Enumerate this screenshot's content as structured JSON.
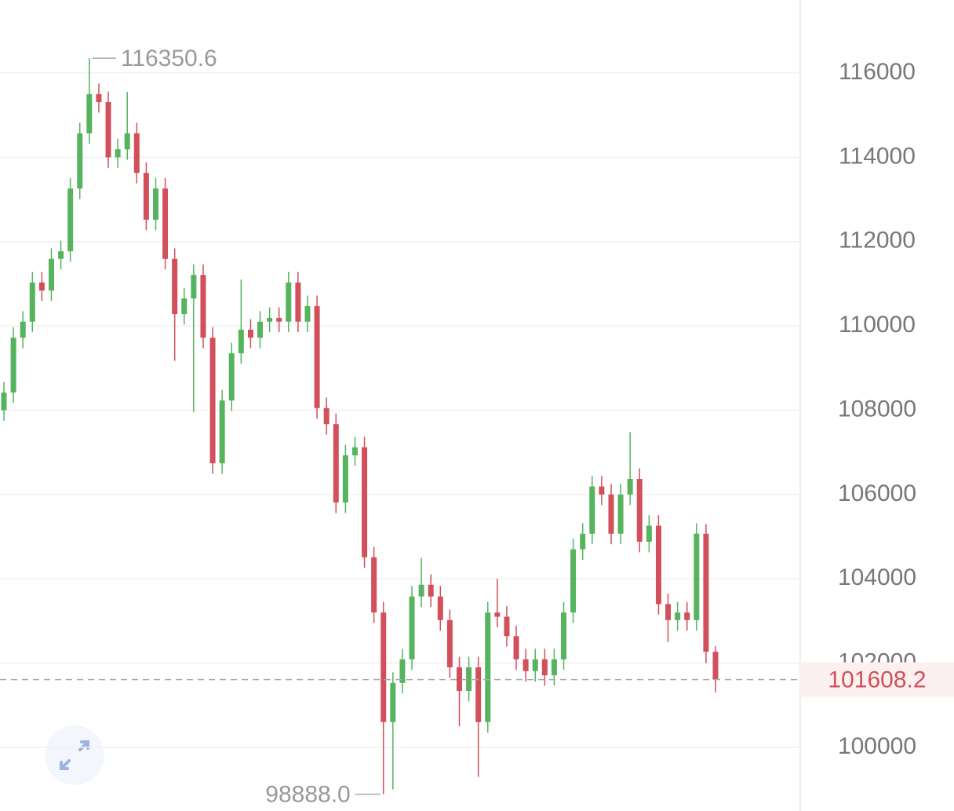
{
  "chart_data": {
    "type": "candlestick",
    "open": [
      108000,
      108420,
      109720,
      110100,
      111030,
      110840,
      111590,
      111770,
      113260,
      114570,
      115500,
      115310,
      114000,
      114190,
      114570,
      113630,
      112520,
      113260,
      111590,
      110280,
      110650,
      111210,
      109720,
      106740,
      108230,
      109350,
      109910,
      109720,
      110100,
      110190,
      110100,
      111030,
      110100,
      110470,
      108050,
      107670,
      105810,
      106930,
      107120,
      104510,
      103200,
      100600,
      101530,
      102090,
      103580,
      103860,
      103580,
      103020,
      101900,
      101340,
      101900,
      100600,
      103200,
      103100,
      102640,
      102090,
      101810,
      102090,
      101710,
      102090,
      103200,
      104700,
      105070,
      106190,
      106000,
      105070,
      106000,
      106370,
      104880,
      105260,
      103400,
      103020,
      103200,
      103020,
      105070,
      102270
    ],
    "high": [
      108670,
      109970,
      110350,
      111280,
      111280,
      111840,
      112020,
      113510,
      114820,
      116350.6,
      115750,
      115560,
      114440,
      115550,
      114820,
      113880,
      113510,
      113510,
      111840,
      110900,
      111460,
      111460,
      109970,
      108480,
      109600,
      111100,
      110160,
      110350,
      110440,
      110440,
      111280,
      111280,
      110720,
      110720,
      108300,
      107920,
      107180,
      107370,
      107370,
      104760,
      103450,
      101780,
      102340,
      103830,
      104500,
      104110,
      103830,
      103270,
      102150,
      102150,
      102150,
      103450,
      104000,
      103350,
      102890,
      102340,
      102340,
      102340,
      102340,
      103450,
      104950,
      105320,
      106440,
      106440,
      106250,
      106250,
      107480,
      106620,
      105510,
      105510,
      103650,
      103450,
      103450,
      105320,
      105300,
      102400
    ],
    "low": [
      107750,
      108170,
      109470,
      109850,
      110590,
      110590,
      111340,
      111520,
      113010,
      114320,
      115060,
      113750,
      113750,
      113940,
      113380,
      112270,
      112270,
      111340,
      109170,
      110030,
      107950,
      109470,
      106490,
      106490,
      107980,
      109100,
      109470,
      109470,
      109850,
      109850,
      109850,
      109850,
      109850,
      107800,
      107420,
      105560,
      105560,
      106680,
      104260,
      102950,
      98888,
      99000,
      101280,
      101840,
      103330,
      103330,
      102770,
      101650,
      100500,
      101090,
      99300,
      100350,
      102850,
      102390,
      101840,
      101560,
      101560,
      101460,
      101460,
      101840,
      102950,
      104450,
      104820,
      105750,
      104820,
      104820,
      105750,
      104630,
      104630,
      103150,
      102500,
      102770,
      102770,
      102770,
      102000,
      101300
    ],
    "close": [
      108420,
      109720,
      110100,
      111030,
      110840,
      111590,
      111770,
      113260,
      114570,
      115500,
      115310,
      114000,
      114190,
      114570,
      113630,
      112520,
      113260,
      111590,
      110280,
      110650,
      111210,
      109720,
      106740,
      108230,
      109350,
      109910,
      109720,
      110100,
      110190,
      110100,
      111030,
      110100,
      110470,
      108050,
      107670,
      105810,
      106930,
      107120,
      104510,
      103200,
      100600,
      101530,
      102090,
      103580,
      103860,
      103580,
      103020,
      101900,
      101340,
      101900,
      100600,
      103200,
      103100,
      102640,
      102090,
      101810,
      102090,
      101710,
      102090,
      103200,
      104700,
      105070,
      106190,
      106000,
      105070,
      106000,
      106370,
      104880,
      105260,
      103400,
      103020,
      103200,
      103020,
      105070,
      102270,
      101608.2
    ],
    "up_color": "#56b35e",
    "down_color": "#d2505c",
    "ylim": [
      98491,
      117732
    ],
    "yticks": [
      100000,
      102000,
      104000,
      106000,
      108000,
      110000,
      112000,
      114000,
      116000
    ],
    "grid": true,
    "max_label": 116350.6,
    "min_label": {
      "value": 98888,
      "label": "98888.0"
    },
    "last_price": 101608.2
  }
}
